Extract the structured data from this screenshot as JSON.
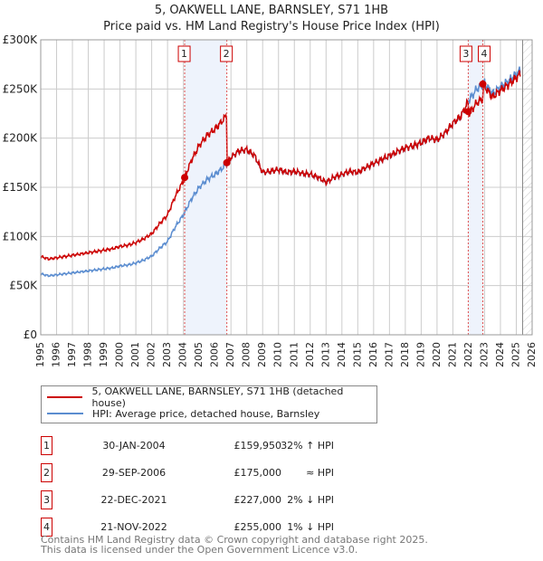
{
  "chart_data": {
    "type": "line",
    "title": "5, OAKWELL LANE, BARNSLEY, S71 1HB",
    "subtitle": "Price paid vs. HM Land Registry's House Price Index (HPI)",
    "xlim": [
      1995,
      2026
    ],
    "ylim": [
      0,
      300000
    ],
    "y_ticks": [
      {
        "v": 0,
        "label": "£0"
      },
      {
        "v": 50000,
        "label": "£50K"
      },
      {
        "v": 100000,
        "label": "£100K"
      },
      {
        "v": 150000,
        "label": "£150K"
      },
      {
        "v": 200000,
        "label": "£200K"
      },
      {
        "v": 250000,
        "label": "£250K"
      },
      {
        "v": 300000,
        "label": "£300K"
      }
    ],
    "x_ticks": [
      "1995",
      "1996",
      "1997",
      "1998",
      "1999",
      "2000",
      "2001",
      "2002",
      "2003",
      "2004",
      "2005",
      "2006",
      "2007",
      "2008",
      "2009",
      "2010",
      "2011",
      "2012",
      "2013",
      "2014",
      "2015",
      "2016",
      "2017",
      "2018",
      "2019",
      "2020",
      "2021",
      "2022",
      "2023",
      "2024",
      "2025",
      "2026"
    ],
    "forecast_start": 2025.4,
    "hpi": {
      "name": "HPI: Average price, detached house, Barnsley",
      "color": "#5b8dd0",
      "x": [
        1995,
        1995.5,
        1996,
        1996.5,
        1997,
        1997.5,
        1998,
        1998.5,
        1999,
        1999.5,
        2000,
        2000.5,
        2001,
        2001.5,
        2002,
        2002.5,
        2003,
        2003.5,
        2004,
        2004.5,
        2005,
        2005.5,
        2006,
        2006.5,
        2007,
        2007.5,
        2008,
        2008.5,
        2009,
        2009.5,
        2010,
        2010.5,
        2011,
        2011.5,
        2012,
        2012.5,
        2013,
        2013.5,
        2014,
        2014.5,
        2015,
        2015.5,
        2016,
        2016.5,
        2017,
        2017.5,
        2018,
        2018.5,
        2019,
        2019.5,
        2020,
        2020.5,
        2021,
        2021.5,
        2022,
        2022.5,
        2023,
        2023.5,
        2024,
        2024.5,
        2025,
        2025.3
      ],
      "y": [
        62000,
        60000,
        61000,
        62000,
        63000,
        64000,
        65000,
        66000,
        67000,
        68000,
        70000,
        71000,
        73000,
        76000,
        80000,
        88000,
        95000,
        110000,
        122000,
        138000,
        150000,
        158000,
        163000,
        170000,
        180000,
        187000,
        188000,
        182000,
        165000,
        166000,
        168000,
        165000,
        166000,
        164000,
        163000,
        160000,
        155000,
        160000,
        163000,
        166000,
        165000,
        170000,
        174000,
        178000,
        182000,
        186000,
        190000,
        192000,
        195000,
        200000,
        198000,
        205000,
        215000,
        222000,
        238000,
        250000,
        256000,
        245000,
        252000,
        258000,
        265000,
        270000
      ]
    },
    "price_paid": {
      "name": "5, OAKWELL LANE, BARNSLEY, S71 1HB (detached house)",
      "color": "#cc0000"
    },
    "sales": [
      {
        "n": "1",
        "date": "30-JAN-2004",
        "t": 2004.08,
        "price": 159950,
        "price_label": "£159,950",
        "hpi_rel": "32% ↑ HPI"
      },
      {
        "n": "2",
        "date": "29-SEP-2006",
        "t": 2006.74,
        "price": 175000,
        "price_label": "£175,000",
        "hpi_rel": "≈ HPI"
      },
      {
        "n": "3",
        "date": "22-DEC-2021",
        "t": 2021.97,
        "price": 227000,
        "price_label": "£227,000",
        "hpi_rel": "2% ↓ HPI"
      },
      {
        "n": "4",
        "date": "21-NOV-2022",
        "t": 2022.89,
        "price": 255000,
        "price_label": "£255,000",
        "hpi_rel": "1% ↓ HPI"
      }
    ]
  },
  "footer": {
    "line1": "Contains HM Land Registry data © Crown copyright and database right 2025.",
    "line2": "This data is licensed under the Open Government Licence v3.0."
  }
}
